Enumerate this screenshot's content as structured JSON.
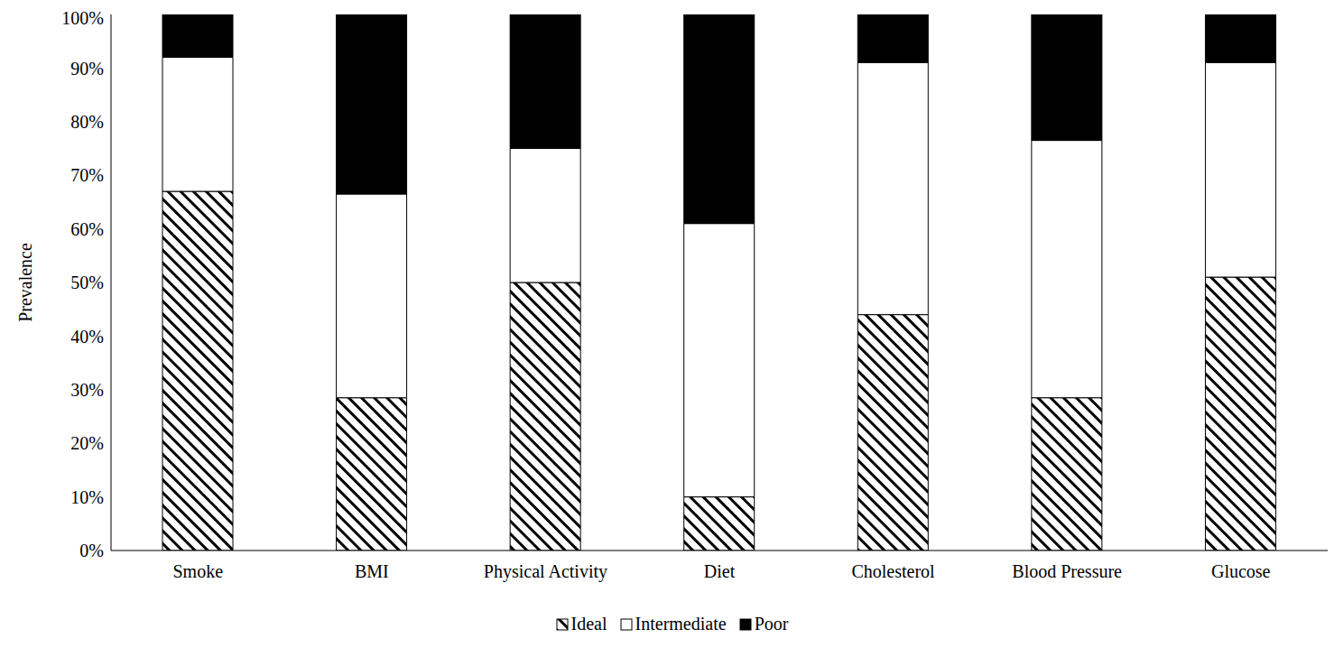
{
  "chart_data": {
    "type": "bar",
    "stacked": true,
    "y_label": "Prevalence",
    "categories": [
      "Smoke",
      "BMI",
      "Physical Activity",
      "Diet",
      "Cholesterol",
      "Blood Pressure",
      "Glucose"
    ],
    "series": [
      {
        "name": "Ideal",
        "color": "#000000",
        "values": [
          67,
          28.5,
          50,
          10,
          44,
          28.5,
          51
        ]
      },
      {
        "name": "Intermediate",
        "color": "#ffffff",
        "values": [
          25,
          38,
          25,
          51,
          47,
          48,
          40
        ]
      },
      {
        "name": "Poor",
        "color": "#000000",
        "values": [
          8,
          33.5,
          25,
          39,
          9,
          23.5,
          9
        ]
      }
    ],
    "ylim": [
      0,
      100
    ],
    "yticks": [
      {
        "value": 0,
        "label": "0%"
      },
      {
        "value": 10,
        "label": "10%"
      },
      {
        "value": 20,
        "label": "20%"
      },
      {
        "value": 30,
        "label": "30%"
      },
      {
        "value": 40,
        "label": "40%"
      },
      {
        "value": 50,
        "label": "50%"
      },
      {
        "value": 60,
        "label": "60%"
      },
      {
        "value": 70,
        "label": "70%"
      },
      {
        "value": 80,
        "label": "80%"
      },
      {
        "value": 90,
        "label": "90%"
      },
      {
        "value": 100,
        "label": "100%"
      }
    ],
    "grid": false,
    "legend": "bottom"
  }
}
